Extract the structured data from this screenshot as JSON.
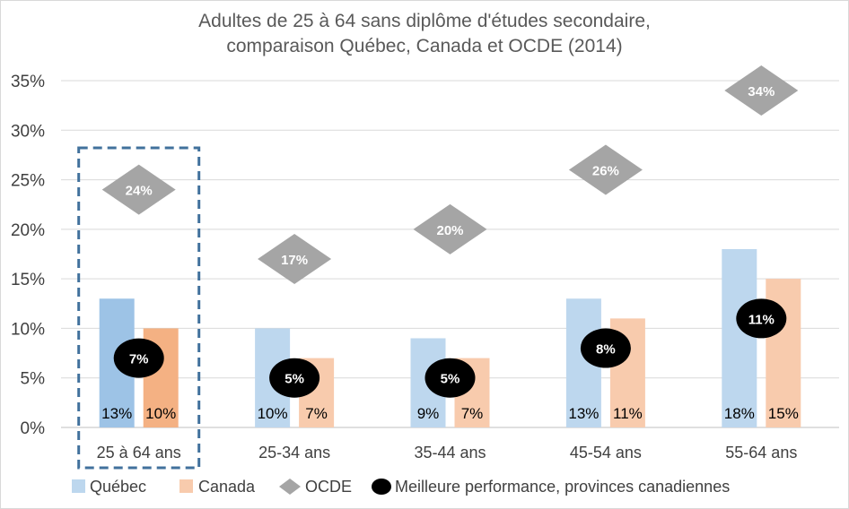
{
  "chart_data": {
    "type": "bar",
    "title": "Adultes de 25 à 64 sans diplôme d'études secondaire,",
    "subtitle": "comparaison Québec, Canada et OCDE (2014)",
    "xlabel": "",
    "ylabel": "",
    "ylim": [
      0,
      35
    ],
    "y_ticks": [
      0,
      5,
      10,
      15,
      20,
      25,
      30,
      35
    ],
    "y_tick_suffix": "%",
    "grid": true,
    "legend_position": "bottom",
    "categories": [
      "25 à 64 ans",
      "25-34 ans",
      "35-44 ans",
      "45-54 ans",
      "55-64 ans"
    ],
    "highlighted_category": "25 à 64 ans",
    "series": [
      {
        "name": "Québec",
        "kind": "bar",
        "values": [
          13,
          10,
          9,
          13,
          18
        ],
        "labels": [
          "13%",
          "10%",
          "9%",
          "13%",
          "18%"
        ],
        "color": "#bdd7ee",
        "highlight_color": "#9dc3e6"
      },
      {
        "name": "Canada",
        "kind": "bar",
        "values": [
          10,
          7,
          7,
          11,
          15
        ],
        "labels": [
          "10%",
          "7%",
          "7%",
          "11%",
          "15%"
        ],
        "color": "#f8cbad",
        "highlight_color": "#f4b183"
      },
      {
        "name": "OCDE",
        "kind": "diamond",
        "values": [
          24,
          17,
          20,
          26,
          34
        ],
        "labels": [
          "24%",
          "17%",
          "20%",
          "26%",
          "34%"
        ],
        "color": "#a5a5a5"
      },
      {
        "name": "Meilleure performance, provinces canadiennes",
        "kind": "ellipse",
        "values": [
          7,
          5,
          5,
          8,
          11
        ],
        "labels": [
          "7%",
          "5%",
          "5%",
          "8%",
          "11%"
        ],
        "color": "#000000"
      }
    ]
  }
}
